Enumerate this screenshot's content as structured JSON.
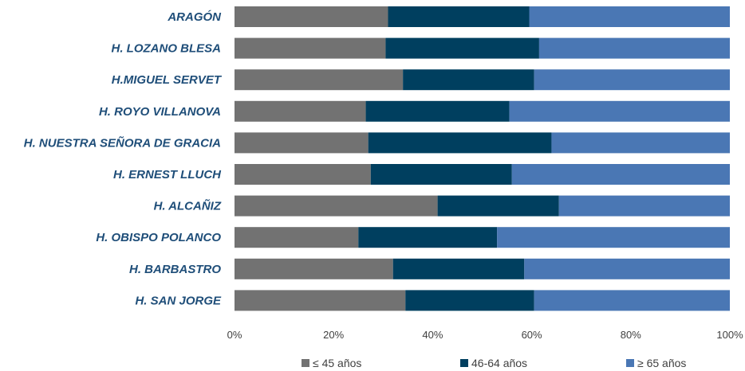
{
  "chart_data": {
    "type": "bar",
    "orientation": "horizontal",
    "stacked": "percent",
    "categories": [
      "ARAGÓN",
      "H. LOZANO BLESA",
      "H.MIGUEL SERVET",
      "H. ROYO VILLANOVA",
      "H. NUESTRA SEÑORA DE GRACIA",
      "H. ERNEST LLUCH",
      "H. ALCAÑIZ",
      "H. OBISPO POLANCO",
      "H. BARBASTRO",
      "H. SAN JORGE"
    ],
    "series": [
      {
        "name": "≤ 45 años",
        "color": "#727272",
        "values": [
          31,
          30.5,
          34,
          26.5,
          27,
          27.5,
          41,
          25,
          32,
          34.5
        ]
      },
      {
        "name": "46-64 años",
        "color": "#003f5f",
        "values": [
          28.5,
          31,
          26.5,
          29,
          37,
          28.5,
          24.5,
          28,
          26.5,
          26
        ]
      },
      {
        "name": "≥ 65 años",
        "color": "#4a77b4",
        "values": [
          40.5,
          38.5,
          39.5,
          44.5,
          36,
          44,
          34.5,
          47,
          41.5,
          39.5
        ]
      }
    ],
    "xlim": [
      0,
      100
    ],
    "x_ticks": [
      "0%",
      "20%",
      "40%",
      "60%",
      "80%",
      "100%"
    ],
    "grid": false,
    "legend_position": "bottom"
  }
}
